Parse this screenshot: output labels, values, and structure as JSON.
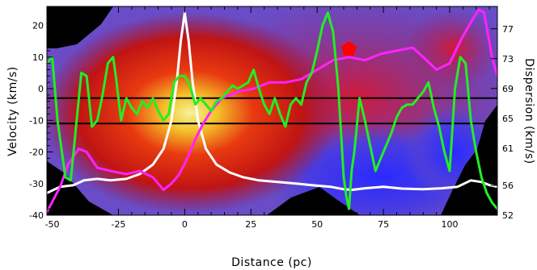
{
  "chart_data": {
    "type": "line",
    "title": "",
    "xlabel": "Distance (pc)",
    "ylabel_left": "Velocity (km/s)",
    "ylabel_right": "Dispersion (km/s)",
    "xlim": [
      -52,
      118
    ],
    "ylim_left": [
      -40,
      26
    ],
    "ylim_right": [
      52,
      80
    ],
    "x_ticks": [
      -50,
      -25,
      0,
      25,
      50,
      75,
      100
    ],
    "y_left_ticks": [
      -40,
      -30,
      -20,
      -10,
      0,
      10,
      20
    ],
    "y_right_ticks": [
      52,
      56,
      61,
      65,
      69,
      73,
      77
    ],
    "grid": false,
    "legend": "none",
    "background": "velocity map (red/yellow core on the left, blue region on the right, black corners)",
    "reference_lines": [
      {
        "name": "",
        "axis": "left",
        "y": -3,
        "color": "#000000"
      },
      {
        "name": "",
        "axis": "left",
        "y": -11,
        "color": "#000000"
      }
    ],
    "marker": {
      "name": "",
      "shape": "pentagon",
      "x": 62,
      "y": 12.5,
      "color": "#ff0000"
    },
    "series": [
      {
        "name": "",
        "axis": "left",
        "color": "#ffffff",
        "x": [
          -52,
          -47,
          -42,
          -38,
          -33,
          -28,
          -22,
          -17,
          -12,
          -8,
          -5,
          -3,
          -1.5,
          0,
          1.5,
          3,
          5,
          8,
          12,
          17,
          22,
          28,
          35,
          42,
          48,
          55,
          60,
          63,
          68,
          75,
          82,
          90,
          97,
          103,
          108,
          112,
          115,
          118
        ],
        "y": [
          -33,
          -31,
          -30.5,
          -29,
          -28.5,
          -29,
          -28.5,
          -27,
          -24,
          -19,
          -10,
          2,
          15,
          24,
          15,
          2,
          -10,
          -19,
          -24,
          -26.5,
          -28,
          -29,
          -29.5,
          -30,
          -30.5,
          -31,
          -31.8,
          -32,
          -31.5,
          -31,
          -31.6,
          -31.8,
          -31.5,
          -31,
          -29,
          -29.5,
          -30.5,
          -31
        ]
      },
      {
        "name": "",
        "axis": "left",
        "color": "#ff22ff",
        "x": [
          -52,
          -47,
          -44,
          -40,
          -37,
          -33,
          -28,
          -22,
          -17,
          -12,
          -8,
          -5,
          -2,
          1,
          4,
          7,
          10,
          14,
          20,
          26,
          32,
          38,
          44,
          50,
          56,
          62,
          68,
          74,
          80,
          86,
          90,
          95,
          100,
          104,
          108,
          111,
          113,
          116,
          118
        ],
        "y": [
          -39,
          -31,
          -24,
          -19,
          -20,
          -25,
          -26,
          -27,
          -26,
          -28,
          -32,
          -30,
          -27,
          -22,
          -16,
          -11,
          -7,
          -3,
          -1,
          0,
          2,
          2,
          3,
          6,
          9,
          10,
          9,
          11,
          12,
          13,
          10,
          6,
          8,
          15,
          21,
          25,
          24,
          10,
          4
        ]
      },
      {
        "name": "",
        "axis": "left",
        "color": "#22ee22",
        "x": [
          -52,
          -50,
          -48,
          -45,
          -43,
          -41,
          -39,
          -37,
          -35,
          -33,
          -31,
          -29,
          -27,
          -26,
          -24,
          -22,
          -20,
          -18,
          -16,
          -14,
          -12,
          -10,
          -8,
          -6,
          -4,
          -2,
          0,
          2,
          4,
          6,
          8,
          10,
          12,
          14,
          16,
          18,
          20,
          22,
          24,
          26,
          28,
          30,
          32,
          34,
          36,
          38,
          40,
          42,
          44,
          46,
          48,
          50,
          52,
          54,
          56,
          58,
          60,
          61,
          62,
          63,
          64,
          66,
          68,
          70,
          72,
          74,
          76,
          78,
          80,
          82,
          84,
          86,
          88,
          90,
          92,
          94,
          96,
          98,
          100,
          102,
          104,
          106,
          108,
          110,
          112,
          114,
          116,
          118
        ],
        "y": [
          8,
          10,
          -10,
          -28,
          -29,
          -12,
          5,
          4,
          -12,
          -10,
          -2,
          8,
          10,
          4,
          -10,
          -3,
          -6,
          -8,
          -4,
          -6,
          -3,
          -7,
          -10,
          -8,
          2,
          4,
          4,
          1,
          -5,
          -3,
          -5,
          -7,
          -4,
          -3,
          -1,
          1,
          0,
          1,
          2,
          6,
          0,
          -5,
          -8,
          -3,
          -8,
          -12,
          -5,
          -3,
          -5,
          2,
          5,
          12,
          20,
          24,
          18,
          0,
          -28,
          -34,
          -38,
          -26,
          -20,
          -3,
          -10,
          -18,
          -26,
          -22,
          -18,
          -14,
          -9,
          -6,
          -5,
          -5,
          -3,
          -1,
          2,
          -6,
          -12,
          -20,
          -26,
          0,
          10,
          8,
          -10,
          -20,
          -28,
          -33,
          -36,
          -38
        ]
      }
    ]
  }
}
